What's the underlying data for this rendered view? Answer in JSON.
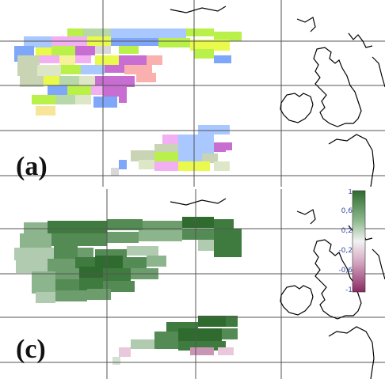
{
  "figure": {
    "panels": [
      {
        "id": "a",
        "label": "(a)",
        "map_style": "categorical",
        "palette": [
          "#b9f04a",
          "#e9fa4d",
          "#7ea6f9",
          "#a8c8ff",
          "#f2b0f2",
          "#c86dd1",
          "#fbb0b0",
          "#b7d8a8",
          "#c9d4b5",
          "#dde7c8",
          "#f5f29a",
          "#f7e59a",
          "#d8d8d8",
          "#ffffff"
        ],
        "description_colors": {
          "coastline": "#000000",
          "gridline": "#000000"
        }
      },
      {
        "id": "c",
        "label": "(c)",
        "map_style": "diverging",
        "colorbar": {
          "tick_labels": [
            "1",
            "0,6",
            "0,2",
            "-0,2",
            "-0,6",
            "-1"
          ],
          "range": [
            -1,
            1
          ],
          "high_color": "#2f6b2f",
          "mid_color": "#f2f2f2",
          "low_color": "#8a2a63",
          "tick_color": "#3b4aa0"
        }
      }
    ]
  }
}
